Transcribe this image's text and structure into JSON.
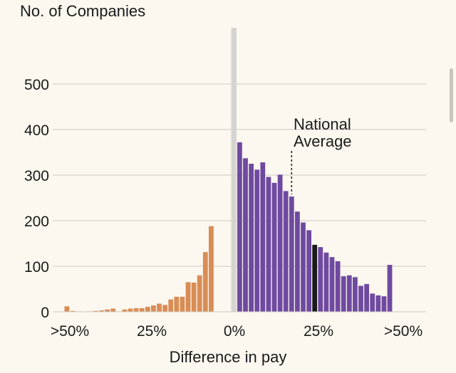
{
  "chart_data": {
    "type": "bar",
    "ylabel": "No. of Companies",
    "xlabel": "Difference in pay",
    "ylim": [
      0,
      500
    ],
    "yticks": [
      0,
      100,
      200,
      300,
      400,
      500
    ],
    "grid": true,
    "xtick_labels": [
      ">50%",
      "25%",
      "0%",
      "25%",
      ">50%"
    ],
    "annotation": {
      "line1": "National",
      "line2": "Average",
      "bar_index": 44
    },
    "colors": {
      "women_higher": "#d98d55",
      "men_higher": "#6f4aa0",
      "national_average_bar": "#1a1a1a",
      "zero_line": "#d6d4d2",
      "grid": "#cdcac6",
      "text": "#1a1a1a",
      "background": "#fcf8ef"
    },
    "left_values": [
      12,
      2,
      1,
      0,
      1,
      2,
      3,
      5,
      7,
      1,
      5,
      7,
      8,
      8,
      11,
      14,
      18,
      15,
      27,
      33,
      33,
      65,
      64,
      80,
      131,
      188
    ],
    "right_values": [
      372,
      337,
      325,
      312,
      328,
      296,
      283,
      301,
      265,
      253,
      220,
      196,
      179,
      147,
      142,
      130,
      120,
      111,
      78,
      80,
      76,
      57,
      61,
      40,
      36,
      34,
      103
    ]
  }
}
